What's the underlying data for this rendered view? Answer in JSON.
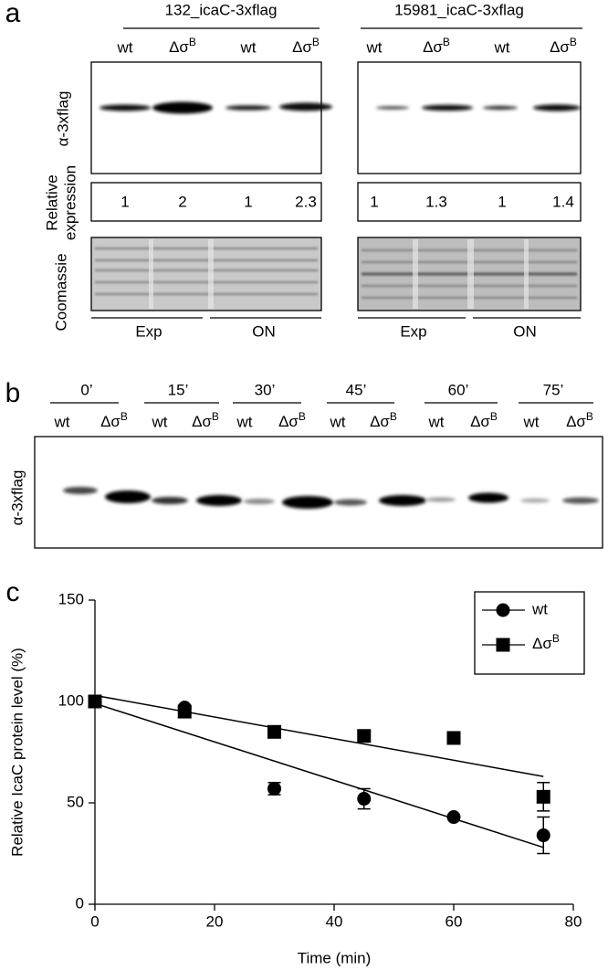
{
  "panel_a": {
    "label": "a",
    "groups": [
      {
        "title": "132_icaC-3xflag",
        "relative_expression": [
          1,
          2,
          1,
          2.3
        ]
      },
      {
        "title": "15981_icaC-3xflag",
        "relative_expression": [
          1,
          1.3,
          1,
          1.4
        ]
      }
    ],
    "row_labels": {
      "blot": "α-3xflag",
      "relative_expression": [
        "Relative",
        "expression"
      ],
      "stain": "Coomassie"
    },
    "conditions": [
      "Exp",
      "ON"
    ]
  },
  "lane_labels": {
    "wt": "wt",
    "mutant": "Δσ",
    "mutant_superscript": "B"
  },
  "panel_b": {
    "label": "b",
    "times": [
      "0’",
      "15’",
      "30’",
      "45’",
      "60’",
      "75’"
    ],
    "row_label": "α-3xflag"
  },
  "chart_data": {
    "type": "scatter",
    "label": "c",
    "x_label": "Time (min)",
    "y_label": "Relative IcaC protein level (%)",
    "xlim": [
      0,
      80
    ],
    "xticks": [
      0,
      20,
      40,
      60,
      80
    ],
    "ylim": [
      0,
      150
    ],
    "yticks": [
      0,
      50,
      100,
      150
    ],
    "grid": false,
    "legend": "top right",
    "series": [
      {
        "name": "wt",
        "marker": "circle",
        "color": "#000000",
        "x": [
          0,
          15,
          30,
          45,
          60,
          75
        ],
        "values": [
          100,
          97,
          57,
          52,
          43,
          34
        ],
        "errors": [
          0,
          0,
          3,
          5,
          0,
          9
        ],
        "fit_x": [
          0,
          75
        ],
        "fit_values": [
          99,
          28
        ]
      },
      {
        "name": "Δσ",
        "name_superscript": "B",
        "marker": "square",
        "color": "#000000",
        "x": [
          0,
          15,
          30,
          45,
          60,
          75
        ],
        "values": [
          100,
          95,
          85,
          83,
          82,
          53
        ],
        "errors": [
          0,
          0,
          0,
          0,
          0,
          7
        ],
        "fit_x": [
          0,
          75
        ],
        "fit_values": [
          103,
          63
        ]
      }
    ]
  }
}
